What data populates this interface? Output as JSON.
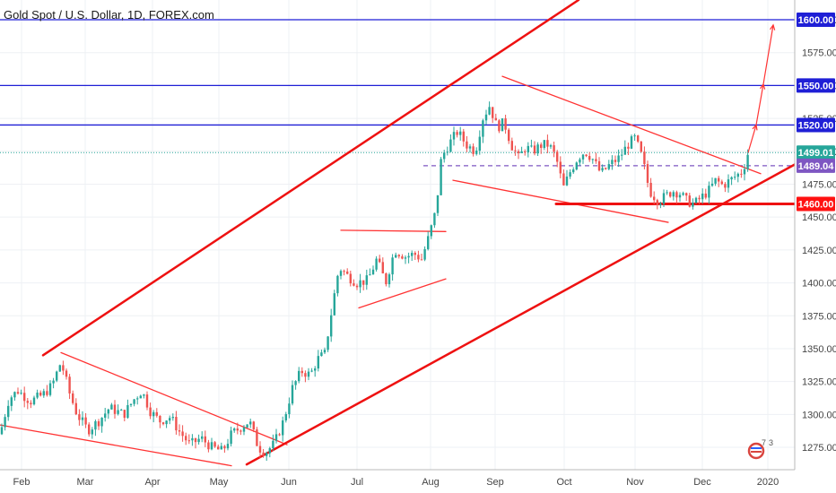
{
  "chart_data": {
    "type": "candlestick",
    "title": "Gold Spot / U.S. Dollar, 1D, FOREX.com",
    "ylim": [
      1258,
      1615
    ],
    "x_months": [
      "Feb",
      "Mar",
      "Apr",
      "May",
      "Jun",
      "Jul",
      "Aug",
      "Sep",
      "Oct",
      "Nov",
      "Dec",
      "2020"
    ],
    "y_ticks": [
      1275,
      1300,
      1325,
      1350,
      1375,
      1400,
      1425,
      1450,
      1475,
      1500,
      1525,
      1550,
      1575,
      1600
    ],
    "y_tick_labels": [
      "1275.00",
      "1300.00",
      "1325.00",
      "1350.00",
      "1375.00",
      "1400.00",
      "1425.00",
      "1450.00",
      "1475.00",
      "1500.00",
      "1525.00",
      "1550.00",
      "1575.00",
      "1600.00"
    ],
    "levels": [
      {
        "value": 1600,
        "label": "1600.00",
        "color": "#1f1fd6"
      },
      {
        "value": 1550,
        "label": "1550.00",
        "color": "#1f1fd6"
      },
      {
        "value": 1520,
        "label": "1520.00",
        "color": "#1f1fd6"
      },
      {
        "value": 1499.01,
        "label": "1499.01",
        "color": "#26a69a"
      },
      {
        "value": 1489.04,
        "label": "1489.04",
        "color": "#7e57c2"
      },
      {
        "value": 1460,
        "label": "1460.00",
        "color": "#ff1111"
      }
    ],
    "candle_keypoints": [
      [
        0,
        1285
      ],
      [
        10,
        1312
      ],
      [
        20,
        1318
      ],
      [
        34,
        1310
      ],
      [
        48,
        1315
      ],
      [
        58,
        1322
      ],
      [
        68,
        1340
      ],
      [
        78,
        1315
      ],
      [
        86,
        1300
      ],
      [
        98,
        1288
      ],
      [
        110,
        1295
      ],
      [
        122,
        1305
      ],
      [
        138,
        1300
      ],
      [
        150,
        1312
      ],
      [
        158,
        1318
      ],
      [
        168,
        1302
      ],
      [
        178,
        1295
      ],
      [
        190,
        1298
      ],
      [
        200,
        1287
      ],
      [
        212,
        1277
      ],
      [
        224,
        1282
      ],
      [
        236,
        1275
      ],
      [
        248,
        1272
      ],
      [
        258,
        1285
      ],
      [
        268,
        1290
      ],
      [
        278,
        1295
      ],
      [
        288,
        1275
      ],
      [
        296,
        1271
      ],
      [
        306,
        1278
      ],
      [
        316,
        1295
      ],
      [
        326,
        1320
      ],
      [
        336,
        1333
      ],
      [
        346,
        1330
      ],
      [
        354,
        1342
      ],
      [
        362,
        1346
      ],
      [
        370,
        1380
      ],
      [
        378,
        1412
      ],
      [
        388,
        1405
      ],
      [
        398,
        1400
      ],
      [
        410,
        1402
      ],
      [
        420,
        1418
      ],
      [
        430,
        1400
      ],
      [
        440,
        1425
      ],
      [
        452,
        1420
      ],
      [
        462,
        1422
      ],
      [
        470,
        1418
      ],
      [
        478,
        1435
      ],
      [
        486,
        1455
      ],
      [
        492,
        1495
      ],
      [
        500,
        1505
      ],
      [
        510,
        1515
      ],
      [
        520,
        1505
      ],
      [
        530,
        1500
      ],
      [
        538,
        1525
      ],
      [
        546,
        1535
      ],
      [
        554,
        1518
      ],
      [
        562,
        1522
      ],
      [
        570,
        1505
      ],
      [
        578,
        1495
      ],
      [
        586,
        1503
      ],
      [
        594,
        1500
      ],
      [
        604,
        1505
      ],
      [
        612,
        1505
      ],
      [
        620,
        1495
      ],
      [
        628,
        1472
      ],
      [
        636,
        1485
      ],
      [
        644,
        1495
      ],
      [
        652,
        1500
      ],
      [
        660,
        1495
      ],
      [
        670,
        1483
      ],
      [
        680,
        1490
      ],
      [
        690,
        1495
      ],
      [
        700,
        1505
      ],
      [
        708,
        1510
      ],
      [
        716,
        1495
      ],
      [
        724,
        1470
      ],
      [
        734,
        1462
      ],
      [
        742,
        1466
      ],
      [
        750,
        1470
      ],
      [
        758,
        1468
      ],
      [
        766,
        1462
      ],
      [
        774,
        1460
      ],
      [
        782,
        1465
      ],
      [
        790,
        1470
      ],
      [
        798,
        1478
      ],
      [
        806,
        1474
      ],
      [
        814,
        1478
      ],
      [
        822,
        1482
      ],
      [
        828,
        1485
      ],
      [
        834,
        1499
      ]
    ],
    "trendlines": [
      {
        "p1": [
          0,
          1292
        ],
        "p2": [
          258,
          1261
        ],
        "color": "#ff3333",
        "width": 1.3
      },
      {
        "p1": [
          68,
          1347
        ],
        "p2": [
          320,
          1277
        ],
        "color": "#ff3333",
        "width": 1.3
      },
      {
        "p1": [
          48,
          1345
        ],
        "p2": [
          645,
          1615
        ],
        "color": "#ee1111",
        "width": 2.5
      },
      {
        "p1": [
          275,
          1262
        ],
        "p2": [
          886,
          1490
        ],
        "color": "#ee1111",
        "width": 2.5
      },
      {
        "p1": [
          380,
          1440
        ],
        "p2": [
          497,
          1439
        ],
        "color": "#ff3333",
        "width": 1.3
      },
      {
        "p1": [
          400,
          1381
        ],
        "p2": [
          497,
          1403
        ],
        "color": "#ff3333",
        "width": 1.3
      },
      {
        "p1": [
          560,
          1557
        ],
        "p2": [
          848,
          1483
        ],
        "color": "#ff3333",
        "width": 1.3
      },
      {
        "p1": [
          505,
          1478
        ],
        "p2": [
          745,
          1446
        ],
        "color": "#ff3333",
        "width": 1.3
      },
      {
        "p1": [
          620,
          1460
        ],
        "p2": [
          886,
          1460
        ],
        "color": "#ee1111",
        "width": 3
      }
    ],
    "projection_path": [
      [
        834,
        1499
      ],
      [
        843,
        1520
      ],
      [
        851,
        1551
      ],
      [
        862,
        1596
      ]
    ]
  },
  "logo": {
    "icon": "tradingview-flag-icon",
    "count_a": "7",
    "count_b": "3"
  }
}
